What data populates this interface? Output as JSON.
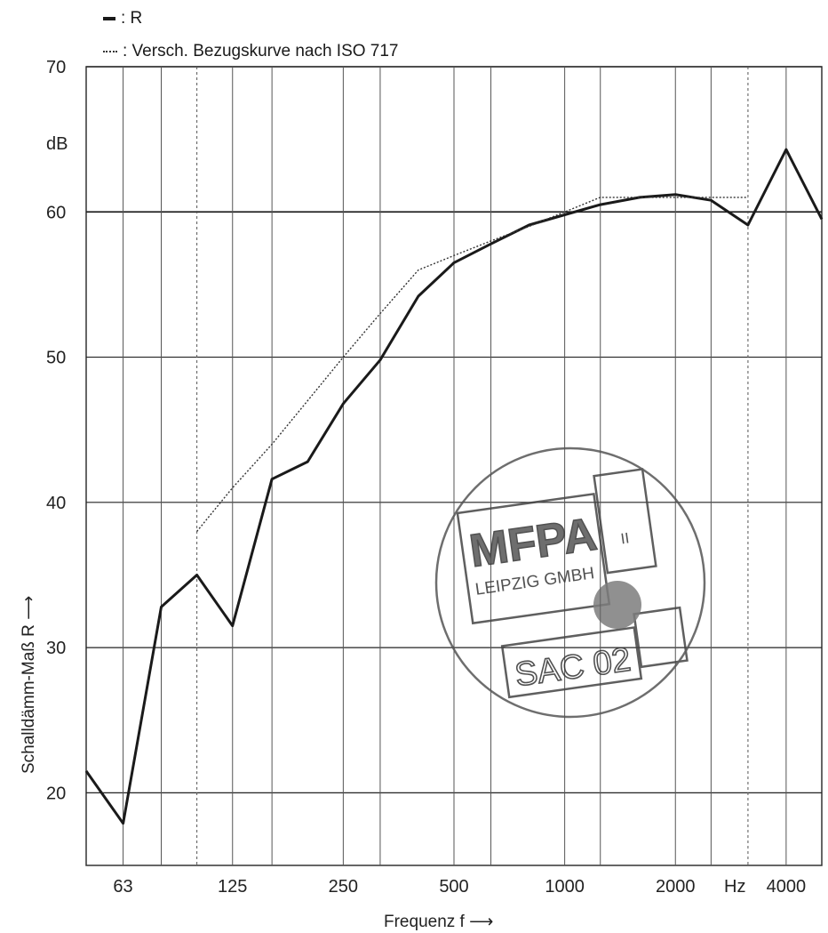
{
  "legend": {
    "series1": ": R",
    "series2": ": Versch. Bezugskurve nach ISO 717"
  },
  "stamp": {
    "org": "MFPA",
    "city": "LEIPZIG GMBH",
    "dept": "II",
    "code": "SAC 02"
  },
  "chart_data": {
    "type": "line",
    "xscale": "log",
    "xlabel": "Frequenz f ⟶",
    "ylabel": "Schalldämm-Maß R ⟶",
    "ylim": [
      15,
      70
    ],
    "xlim": [
      50,
      5000
    ],
    "y_unit_label": "dB",
    "x_unit_label": "Hz",
    "yticks": [
      20,
      30,
      40,
      50,
      60,
      70
    ],
    "xticks": [
      {
        "value": 63,
        "label": "63"
      },
      {
        "value": 125,
        "label": "125"
      },
      {
        "value": 250,
        "label": "250"
      },
      {
        "value": 500,
        "label": "500"
      },
      {
        "value": 1000,
        "label": "1000"
      },
      {
        "value": 2000,
        "label": "2000"
      },
      {
        "value": 4000,
        "label": "4000"
      }
    ],
    "series": [
      {
        "name": "R",
        "style": "solid",
        "color": "#1a1a1a",
        "x": [
          50,
          63,
          80,
          100,
          125,
          160,
          200,
          250,
          315,
          400,
          500,
          630,
          800,
          1000,
          1250,
          1600,
          2000,
          2500,
          3150,
          4000,
          5000
        ],
        "y": [
          21.5,
          17.9,
          32.8,
          35.0,
          31.5,
          41.6,
          42.8,
          46.8,
          49.8,
          54.2,
          56.5,
          57.8,
          59.1,
          59.8,
          60.5,
          61.0,
          61.2,
          60.8,
          59.1,
          64.3,
          59.5
        ]
      },
      {
        "name": "Versch. Bezugskurve nach ISO 717",
        "style": "dotted",
        "color": "#333333",
        "x": [
          100,
          125,
          160,
          200,
          250,
          315,
          400,
          500,
          630,
          800,
          1000,
          1250,
          1600,
          2000,
          2500,
          3150
        ],
        "y": [
          38,
          41,
          44,
          47,
          50,
          53,
          56,
          57,
          58,
          59,
          60,
          61,
          61,
          61,
          61,
          61
        ]
      }
    ],
    "grid": true,
    "minor_x_gridlines_dashed": [
      100,
      3150
    ]
  }
}
